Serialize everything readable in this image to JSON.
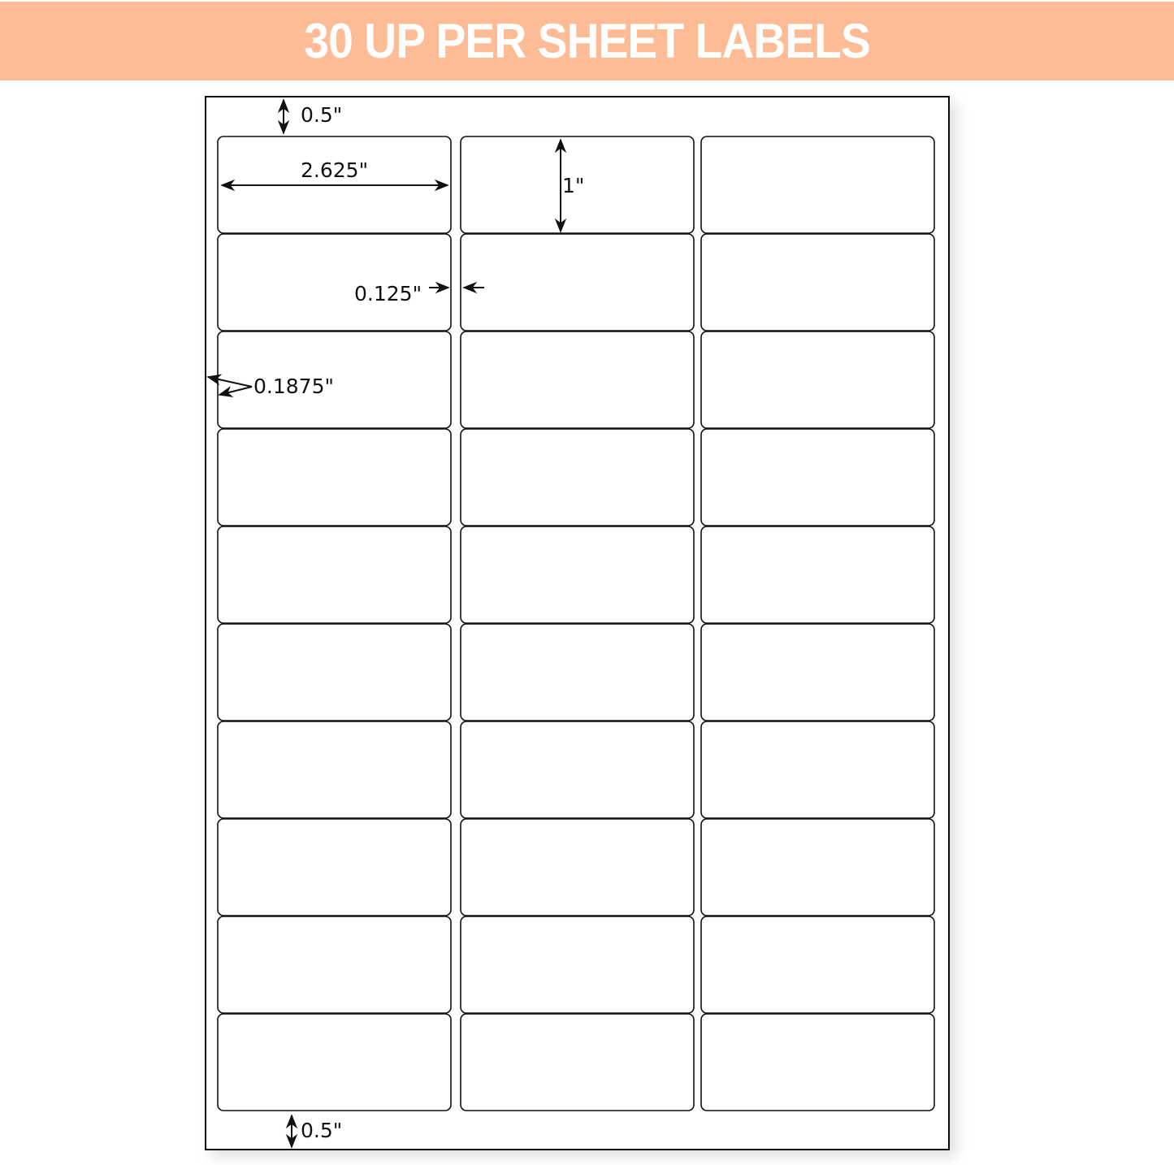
{
  "title": "30 UP PER SHEET LABELS",
  "colors": {
    "banner": "#fdbb96",
    "banner_text": "#ffffff",
    "lines": "#111111"
  },
  "layout_grid": {
    "rows": 10,
    "columns": 3
  },
  "dimensions": {
    "top_margin": "0.5\"",
    "label_width": "2.625\"",
    "label_height": "1\"",
    "column_gap": "0.125\"",
    "side_margin": "0.1875\"",
    "bottom_margin": "0.5\""
  }
}
